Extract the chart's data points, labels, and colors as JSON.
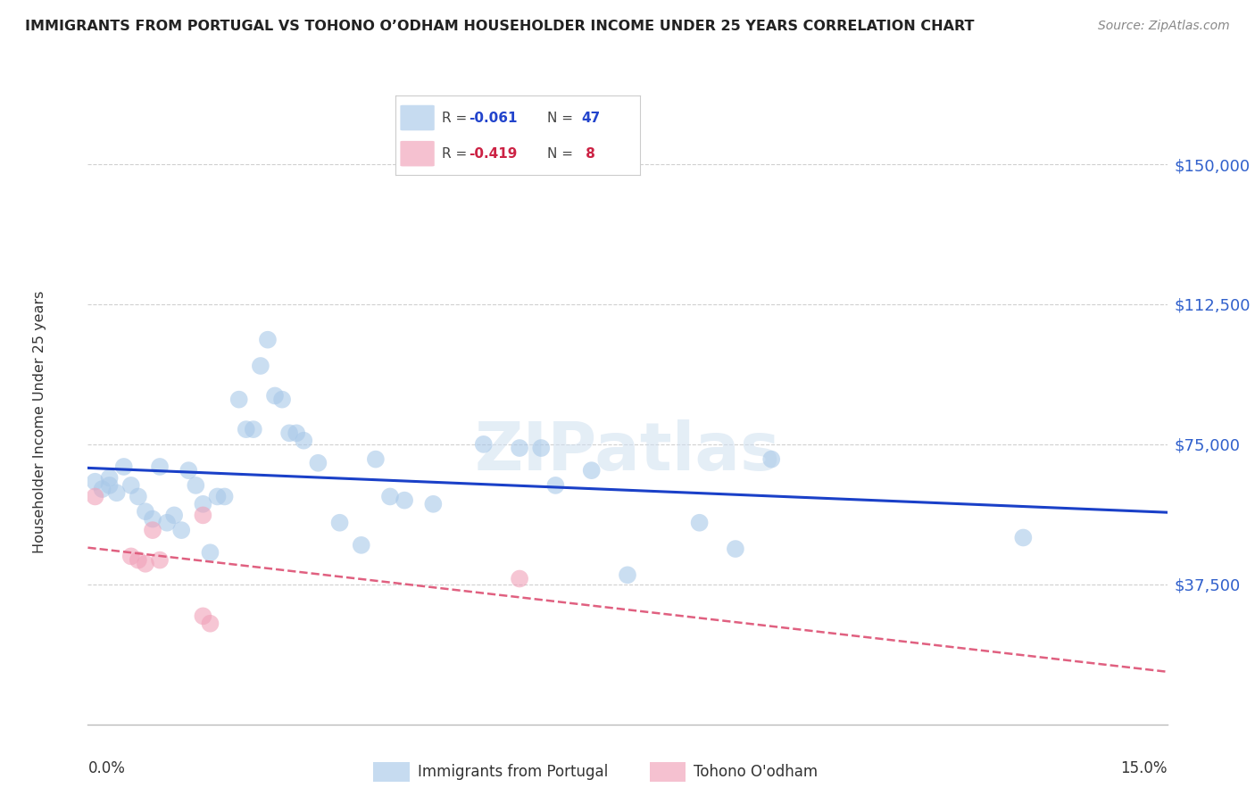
{
  "title": "IMMIGRANTS FROM PORTUGAL VS TOHONO O’ODHAM HOUSEHOLDER INCOME UNDER 25 YEARS CORRELATION CHART",
  "source": "Source: ZipAtlas.com",
  "ylabel": "Householder Income Under 25 years",
  "ytick_labels": [
    "$150,000",
    "$112,500",
    "$75,000",
    "$37,500"
  ],
  "ytick_values": [
    150000,
    112500,
    75000,
    37500
  ],
  "ylim": [
    0,
    162000
  ],
  "xlim": [
    0.0,
    0.15
  ],
  "blue_color": "#a8c8e8",
  "blue_line_color": "#1a40c8",
  "pink_color": "#f0a0b8",
  "pink_line_color": "#e06080",
  "blue_scatter": [
    [
      0.001,
      65000
    ],
    [
      0.002,
      63000
    ],
    [
      0.003,
      66000
    ],
    [
      0.003,
      64000
    ],
    [
      0.004,
      62000
    ],
    [
      0.005,
      69000
    ],
    [
      0.006,
      64000
    ],
    [
      0.007,
      61000
    ],
    [
      0.008,
      57000
    ],
    [
      0.009,
      55000
    ],
    [
      0.01,
      69000
    ],
    [
      0.011,
      54000
    ],
    [
      0.012,
      56000
    ],
    [
      0.013,
      52000
    ],
    [
      0.014,
      68000
    ],
    [
      0.015,
      64000
    ],
    [
      0.016,
      59000
    ],
    [
      0.017,
      46000
    ],
    [
      0.018,
      61000
    ],
    [
      0.019,
      61000
    ],
    [
      0.021,
      87000
    ],
    [
      0.022,
      79000
    ],
    [
      0.023,
      79000
    ],
    [
      0.024,
      96000
    ],
    [
      0.025,
      103000
    ],
    [
      0.026,
      88000
    ],
    [
      0.027,
      87000
    ],
    [
      0.028,
      78000
    ],
    [
      0.029,
      78000
    ],
    [
      0.03,
      76000
    ],
    [
      0.032,
      70000
    ],
    [
      0.035,
      54000
    ],
    [
      0.038,
      48000
    ],
    [
      0.04,
      71000
    ],
    [
      0.042,
      61000
    ],
    [
      0.044,
      60000
    ],
    [
      0.048,
      59000
    ],
    [
      0.055,
      75000
    ],
    [
      0.06,
      74000
    ],
    [
      0.063,
      74000
    ],
    [
      0.065,
      64000
    ],
    [
      0.07,
      68000
    ],
    [
      0.075,
      40000
    ],
    [
      0.085,
      54000
    ],
    [
      0.09,
      47000
    ],
    [
      0.095,
      71000
    ],
    [
      0.13,
      50000
    ]
  ],
  "pink_scatter": [
    [
      0.001,
      61000
    ],
    [
      0.006,
      45000
    ],
    [
      0.007,
      44000
    ],
    [
      0.008,
      43000
    ],
    [
      0.009,
      52000
    ],
    [
      0.01,
      44000
    ],
    [
      0.016,
      56000
    ],
    [
      0.016,
      29000
    ],
    [
      0.017,
      27000
    ],
    [
      0.06,
      39000
    ]
  ],
  "watermark": "ZIPatlas",
  "background_color": "#ffffff",
  "grid_color": "#d0d0d0"
}
